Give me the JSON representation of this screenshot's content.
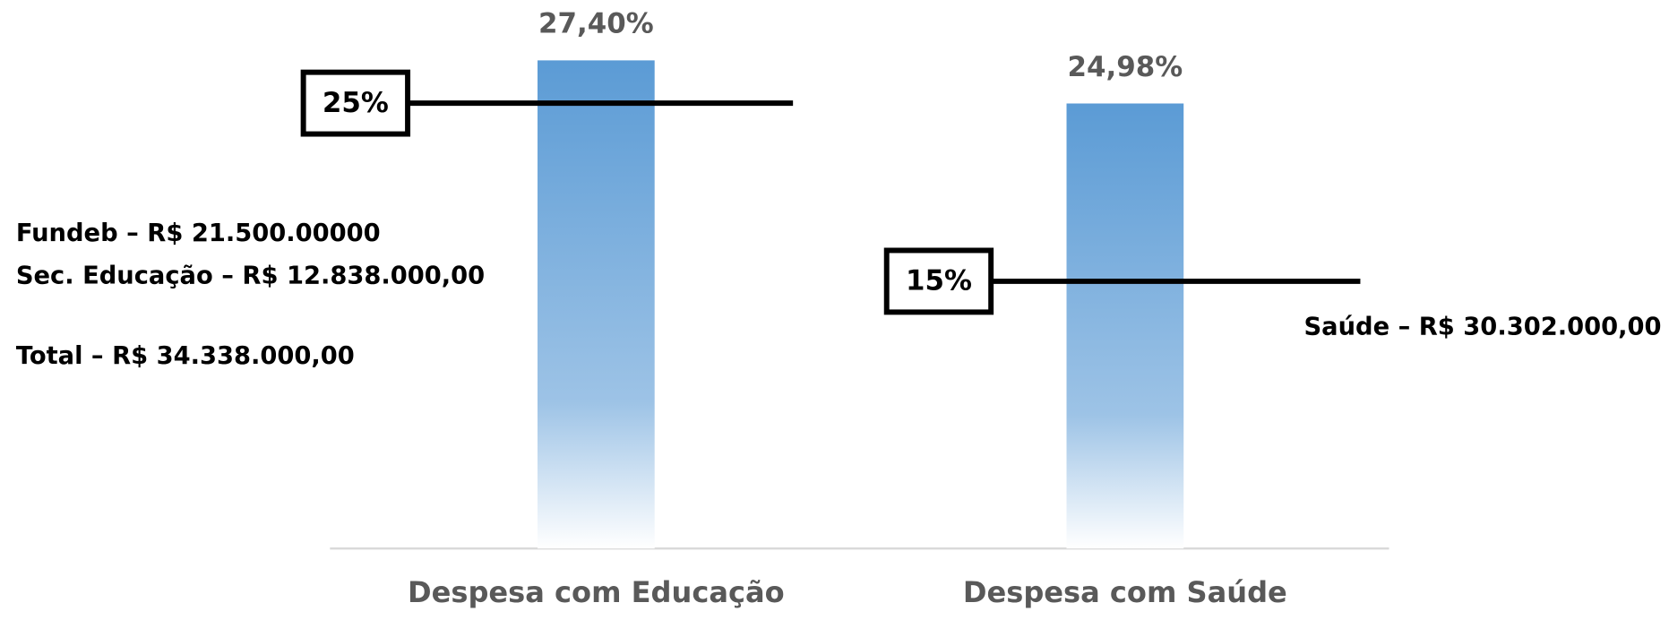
{
  "chart_data": {
    "type": "bar",
    "categories": [
      "Despesa com Educação",
      "Despesa com Saúde"
    ],
    "values": [
      27.4,
      24.98
    ],
    "value_labels": [
      "27,40%",
      "24,98%"
    ],
    "color": "#5b9bd5",
    "ylim": [
      0,
      30
    ],
    "reference_lines": [
      {
        "value": 25,
        "label": "25%"
      },
      {
        "value": 15,
        "label": "15%"
      }
    ],
    "annotations": [
      "Fundeb – R$ 21.500.00000",
      "Sec. Educação – R$ 12.838.000,00",
      "Total – R$ 34.338.000,00",
      "Saúde – R$ 30.302.000,00"
    ]
  }
}
